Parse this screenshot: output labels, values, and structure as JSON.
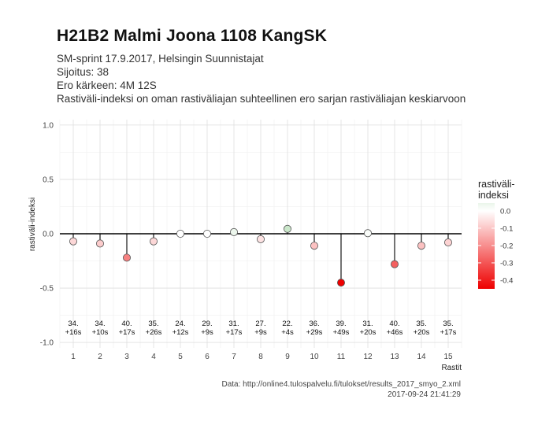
{
  "header": {
    "title": "H21B2 Malmi Joona 1108 KangSK",
    "line1": "SM-sprint 17.9.2017, Helsingin Suunnistajat",
    "line2": "Sijoitus: 38",
    "line3": "Ero kärkeen: 4M 12S",
    "line4": "Rastiväli-indeksi on oman rastiväliajan suhteellinen ero sarjan rastiväliajan keskiarvoon"
  },
  "caption": {
    "source": "Data: http://online4.tulospalvelu.fi/tulokset/results_2017_smyo_2.xml",
    "timestamp": "2017-09-24 21:41:29"
  },
  "chart_data": {
    "type": "lollipop",
    "xlabel": "Rastit",
    "ylabel": "rastiväli-indeksi",
    "ylim": [
      -1.05,
      1.05
    ],
    "yticks": [
      "-1.0",
      "-0.5",
      "0.0",
      "0.5",
      "1.0"
    ],
    "ytick_values": [
      -1.0,
      -0.5,
      0.0,
      0.5,
      1.0
    ],
    "grid": true,
    "x": [
      1,
      2,
      3,
      4,
      5,
      6,
      7,
      8,
      9,
      10,
      11,
      12,
      13,
      14,
      15
    ],
    "values": [
      -0.07,
      -0.09,
      -0.22,
      -0.07,
      0.0,
      0.0,
      0.015,
      -0.05,
      0.045,
      -0.11,
      -0.45,
      0.005,
      -0.28,
      -0.11,
      -0.08
    ],
    "rank_labels": [
      "34.",
      "34.",
      "40.",
      "35.",
      "24.",
      "29.",
      "31.",
      "27.",
      "22.",
      "36.",
      "39.",
      "31.",
      "40.",
      "35.",
      "35."
    ],
    "diff_labels": [
      "+16s",
      "+10s",
      "+17s",
      "+26s",
      "+12s",
      "+9s",
      "+17s",
      "+9s",
      "+4s",
      "+29s",
      "+49s",
      "+20s",
      "+46s",
      "+20s",
      "+17s"
    ],
    "legend": {
      "title": "rastiväli-\nindeksi",
      "title_line1": "rastiväli-",
      "title_line2": "indeksi",
      "position": "right",
      "breaks": [
        "0.0",
        "-0.1",
        "-0.2",
        "-0.3",
        "-0.4"
      ],
      "break_values": [
        0.0,
        -0.1,
        -0.2,
        -0.3,
        -0.4
      ],
      "range": [
        -0.45,
        0.045
      ],
      "color_low": "#ee0000",
      "color_mid": "#ffffff",
      "color_high": "#2a9d2a"
    }
  }
}
